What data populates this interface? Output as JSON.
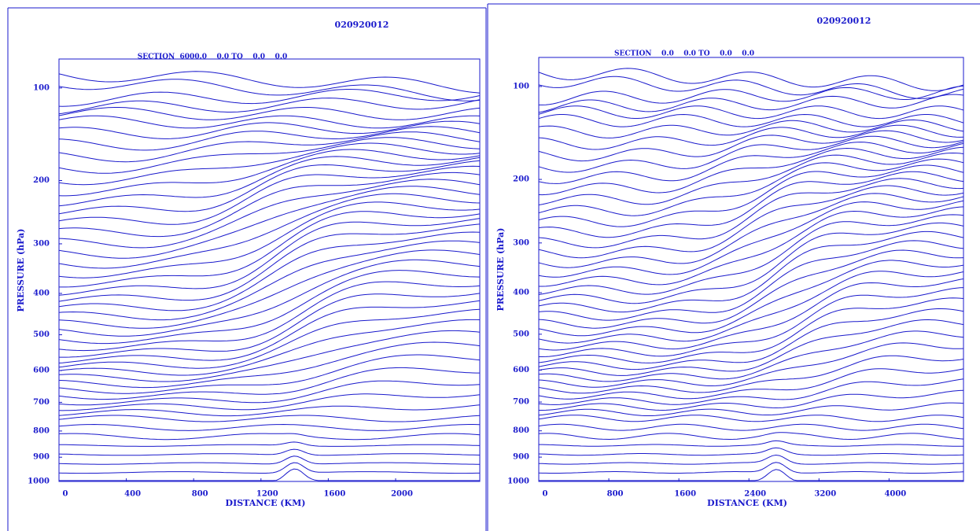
{
  "chart_data": [
    {
      "type": "contour",
      "title": "020920012",
      "subtitle": "SECTION  6000.0    0.0 TO    0.0    0.0",
      "xlabel": "DISTANCE (KM)",
      "ylabel": "PRESSURE (hPa)",
      "color": "#1a1acc",
      "xlim": [
        0,
        2500
      ],
      "xticks": [
        0,
        400,
        800,
        1200,
        1600,
        2000
      ],
      "ylim": [
        1000,
        78
      ],
      "yticks": [
        100,
        200,
        300,
        400,
        500,
        600,
        700,
        800,
        900,
        1000
      ],
      "y_exponent": 0.286
    },
    {
      "type": "contour",
      "title": "020920012",
      "subtitle": "SECTION    0.0    0.0 TO    0.0    0.0",
      "xlabel": "DISTANCE (KM)",
      "ylabel": "PRESSURE (hPa)",
      "color": "#1a1acc",
      "xlim": [
        0,
        4850
      ],
      "xticks": [
        0,
        800,
        1600,
        2400,
        3200,
        4000
      ],
      "ylim": [
        1000,
        78
      ],
      "yticks": [
        100,
        200,
        300,
        400,
        500,
        600,
        700,
        800,
        900,
        1000
      ],
      "y_exponent": 0.286
    }
  ]
}
